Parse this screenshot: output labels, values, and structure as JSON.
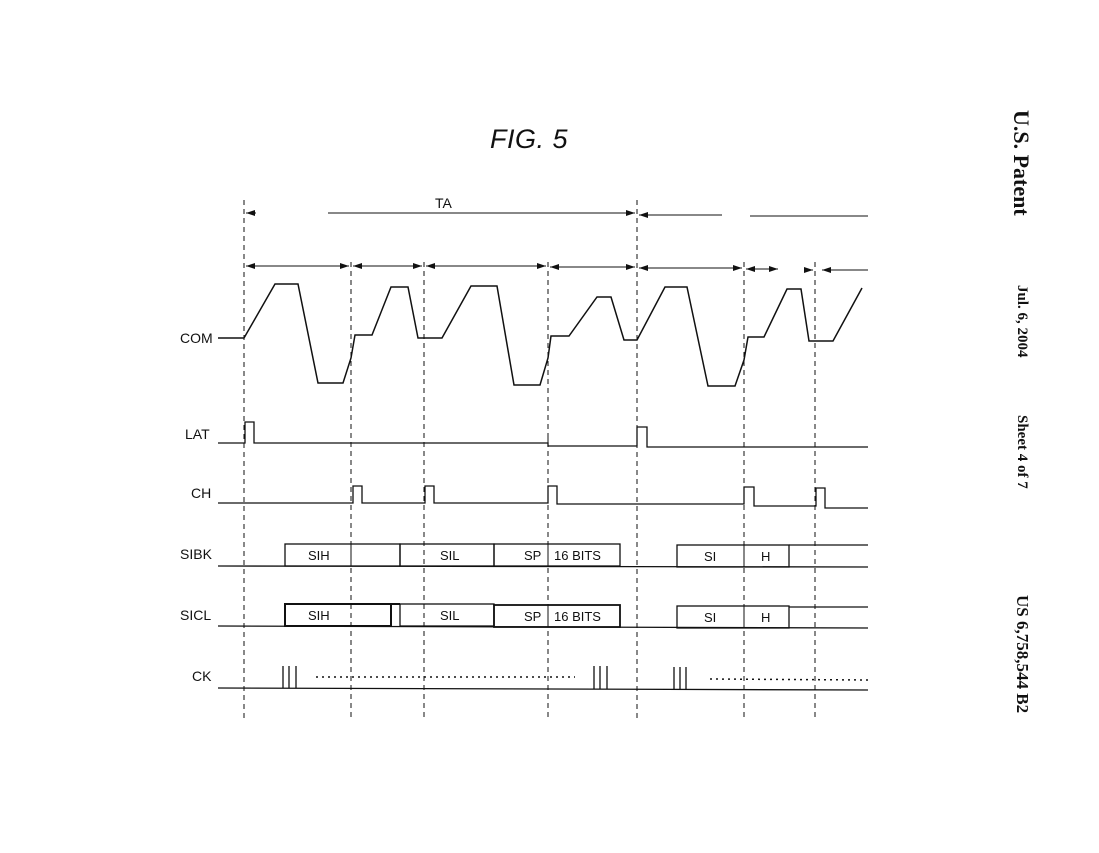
{
  "figure": {
    "title": "FIG. 5"
  },
  "header": {
    "patent": "U.S. Patent",
    "date": "Jul. 6, 2004",
    "sheet": "Sheet 4 of 7",
    "number": "US 6,758,544 B2"
  },
  "timing": {
    "period_label": "TA",
    "signals": {
      "com": "COM",
      "lat": "LAT",
      "ch": "CH",
      "sibk": "SIBK",
      "sicl": "SICL",
      "ck": "CK"
    },
    "sibk_fields": {
      "sih": "SIH",
      "sil": "SIL",
      "sp": "SP",
      "bits": "16 BITS",
      "si": "SI",
      "h": "H"
    },
    "sicl_fields": {
      "sih": "SIH",
      "sil": "SIL",
      "sp": "SP",
      "bits": "16 BITS",
      "si": "SI",
      "h": "H"
    }
  }
}
